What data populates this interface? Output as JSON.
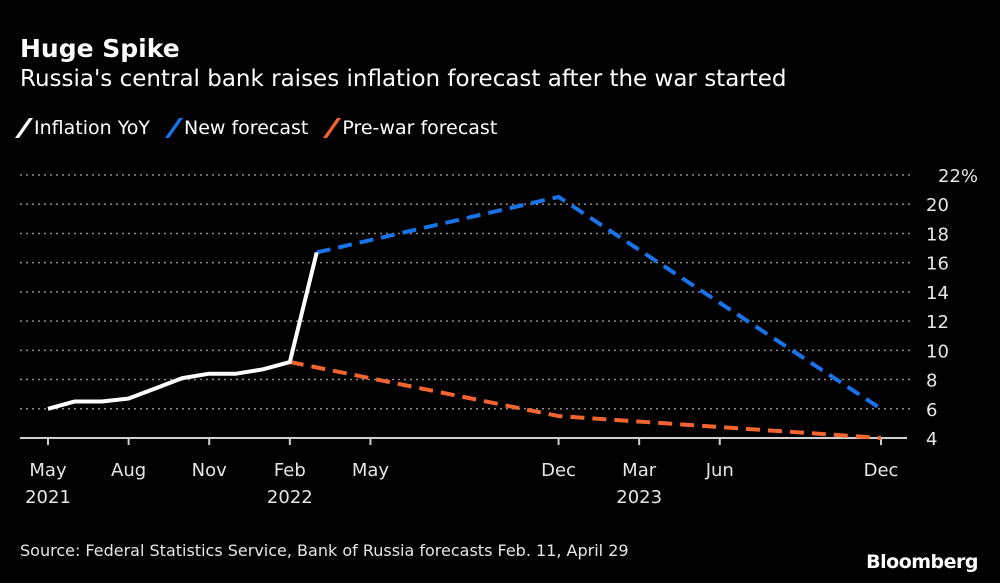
{
  "chart_data": {
    "type": "line",
    "title": "Huge Spike",
    "subtitle": "Russia's central bank raises inflation forecast after the war started",
    "xlabel": "",
    "ylabel": "",
    "ylim": [
      4,
      22
    ],
    "yticks": [
      "22%",
      "20",
      "18",
      "16",
      "14",
      "12",
      "10",
      "8",
      "6",
      "4"
    ],
    "ytick_values": [
      22,
      20,
      18,
      16,
      14,
      12,
      10,
      8,
      6,
      4
    ],
    "xlim": [
      "2021-05",
      "2023-12"
    ],
    "xticks": [
      {
        "x": "2021-05",
        "label": "May",
        "year": "2021"
      },
      {
        "x": "2021-08",
        "label": "Aug",
        "year": ""
      },
      {
        "x": "2021-11",
        "label": "Nov",
        "year": ""
      },
      {
        "x": "2022-02",
        "label": "Feb",
        "year": "2022"
      },
      {
        "x": "2022-05",
        "label": "May",
        "year": ""
      },
      {
        "x": "2022-12",
        "label": "Dec",
        "year": ""
      },
      {
        "x": "2023-03",
        "label": "Mar",
        "year": "2023"
      },
      {
        "x": "2023-06",
        "label": "Jun",
        "year": ""
      },
      {
        "x": "2023-12",
        "label": "Dec",
        "year": ""
      }
    ],
    "grid": true,
    "legend_position": "top-left",
    "series": [
      {
        "name": "Inflation YoY",
        "color": "#ffffff",
        "style": "solid",
        "x": [
          "2021-05",
          "2021-06",
          "2021-07",
          "2021-08",
          "2021-09",
          "2021-10",
          "2021-11",
          "2021-12",
          "2022-01",
          "2022-02",
          "2022-03"
        ],
        "values": [
          6.0,
          6.5,
          6.5,
          6.7,
          7.4,
          8.1,
          8.4,
          8.4,
          8.7,
          9.2,
          16.7
        ]
      },
      {
        "name": "New forecast",
        "color": "#1a73e8",
        "style": "dashed",
        "x": [
          "2022-03",
          "2022-12",
          "2023-12"
        ],
        "values": [
          16.7,
          20.5,
          6.0
        ]
      },
      {
        "name": "Pre-war forecast",
        "color": "#f26430",
        "style": "dashed",
        "x": [
          "2022-02",
          "2022-12",
          "2023-12"
        ],
        "values": [
          9.2,
          5.5,
          4.0
        ]
      }
    ]
  },
  "source": "Source: Federal Statistics Service, Bank of Russia forecasts Feb. 11, April 29",
  "logo": "Bloomberg"
}
